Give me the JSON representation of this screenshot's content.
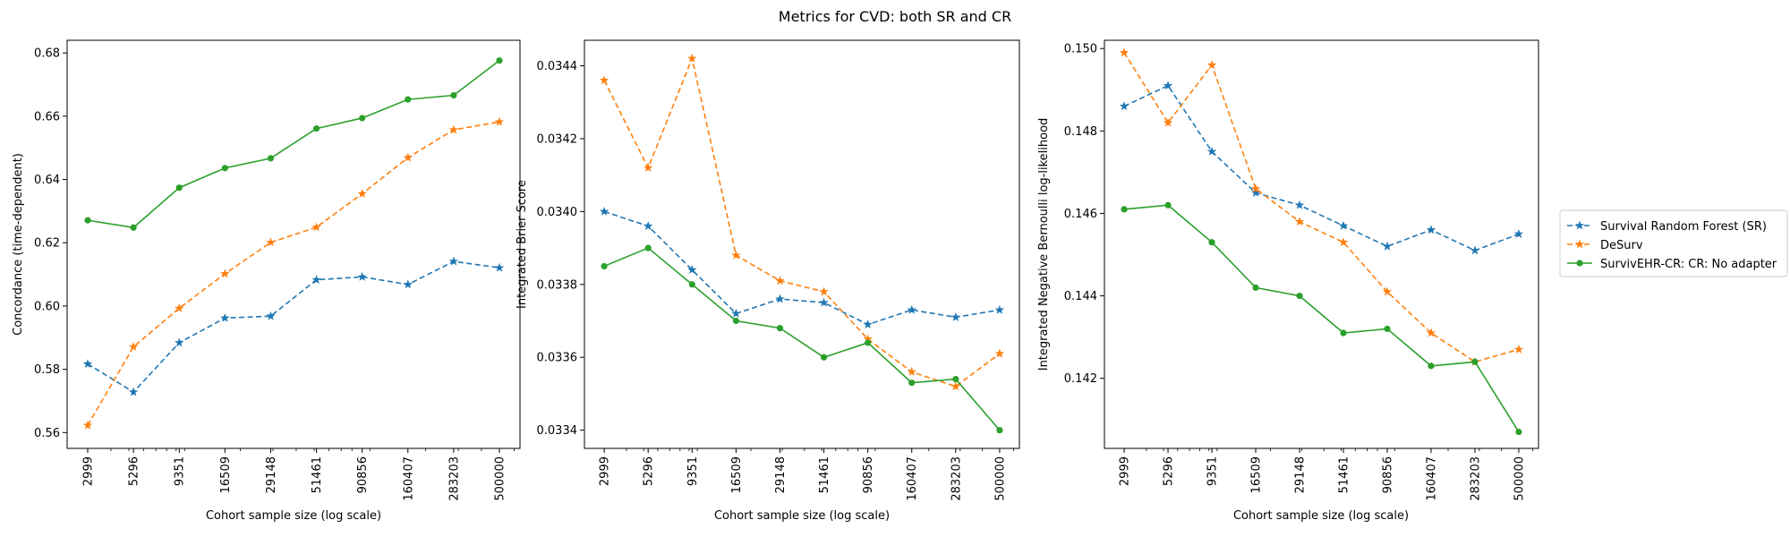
{
  "title": "Metrics for CVD: both SR and CR",
  "colors": {
    "srf": "#1f77b4",
    "desurv": "#ff7f0e",
    "survivehr": "#2ca02c"
  },
  "legend": {
    "placement": "right",
    "entries": [
      "Survival Random Forest (SR)",
      "DeSurv",
      "SurvivEHR-CR: CR: No adapter"
    ]
  },
  "chart_data": [
    {
      "type": "line",
      "title": "",
      "xlabel": "Cohort sample size (log scale)",
      "ylabel": "Concordance (time-dependent)",
      "xscale": "log",
      "x": [
        2999,
        5296,
        9351,
        16509,
        29148,
        51461,
        90856,
        160407,
        283203,
        500000
      ],
      "ylim": [
        0.555,
        0.684
      ],
      "yticks": [
        "0.56",
        "0.58",
        "0.60",
        "0.62",
        "0.64",
        "0.66",
        "0.68"
      ],
      "series": [
        {
          "name": "Survival Random Forest (SR)",
          "style": "dashed-star",
          "values": [
            0.5817,
            0.5728,
            0.5884,
            0.5962,
            0.5968,
            0.6083,
            0.6092,
            0.6068,
            0.6141,
            0.6121
          ]
        },
        {
          "name": "DeSurv",
          "style": "dashed-star",
          "values": [
            0.5623,
            0.5871,
            0.5993,
            0.6102,
            0.6201,
            0.6249,
            0.6355,
            0.6469,
            0.6557,
            0.6582
          ]
        },
        {
          "name": "SurvivEHR-CR: CR: No adapter",
          "style": "solid-circle",
          "values": [
            0.6271,
            0.6248,
            0.6374,
            0.6436,
            0.6467,
            0.6561,
            0.6594,
            0.6653,
            0.6666,
            0.6776
          ]
        }
      ]
    },
    {
      "type": "line",
      "title": "",
      "xlabel": "Cohort sample size (log scale)",
      "ylabel": "Integrated Brier Score",
      "xscale": "log",
      "x": [
        2999,
        5296,
        9351,
        16509,
        29148,
        51461,
        90856,
        160407,
        283203,
        500000
      ],
      "ylim": [
        0.03335,
        0.03447
      ],
      "yticks": [
        "0.0334",
        "0.0336",
        "0.0338",
        "0.0340",
        "0.0342",
        "0.0344"
      ],
      "series": [
        {
          "name": "Survival Random Forest (SR)",
          "style": "dashed-star",
          "values": [
            0.034,
            0.03396,
            0.03384,
            0.03372,
            0.03376,
            0.03375,
            0.03369,
            0.03373,
            0.03371,
            0.03373
          ]
        },
        {
          "name": "DeSurv",
          "style": "dashed-star",
          "values": [
            0.03436,
            0.03412,
            0.03442,
            0.03388,
            0.03381,
            0.03378,
            0.03365,
            0.03356,
            0.03352,
            0.03361
          ]
        },
        {
          "name": "SurvivEHR-CR: CR: No adapter",
          "style": "solid-circle",
          "values": [
            0.03385,
            0.0339,
            0.0338,
            0.0337,
            0.03368,
            0.0336,
            0.03364,
            0.03353,
            0.03354,
            0.0334
          ]
        }
      ]
    },
    {
      "type": "line",
      "title": "",
      "xlabel": "Cohort sample size (log scale)",
      "ylabel": "Integrated Negative Bernoulli log-likelihood",
      "xscale": "log",
      "x": [
        2999,
        5296,
        9351,
        16509,
        29148,
        51461,
        90856,
        160407,
        283203,
        500000
      ],
      "ylim": [
        0.1403,
        0.1502
      ],
      "yticks": [
        "0.142",
        "0.144",
        "0.146",
        "0.148",
        "0.150"
      ],
      "series": [
        {
          "name": "Survival Random Forest (SR)",
          "style": "dashed-star",
          "values": [
            0.1486,
            0.1491,
            0.1475,
            0.1465,
            0.1462,
            0.1457,
            0.1452,
            0.1456,
            0.1451,
            0.1455
          ]
        },
        {
          "name": "DeSurv",
          "style": "dashed-star",
          "values": [
            0.1499,
            0.1482,
            0.1496,
            0.1466,
            0.1458,
            0.1453,
            0.1441,
            0.1431,
            0.1424,
            0.1427
          ]
        },
        {
          "name": "SurvivEHR-CR: CR: No adapter",
          "style": "solid-circle",
          "values": [
            0.1461,
            0.1462,
            0.1453,
            0.1442,
            0.144,
            0.1431,
            0.1432,
            0.1423,
            0.1424,
            0.1407
          ]
        }
      ]
    }
  ]
}
